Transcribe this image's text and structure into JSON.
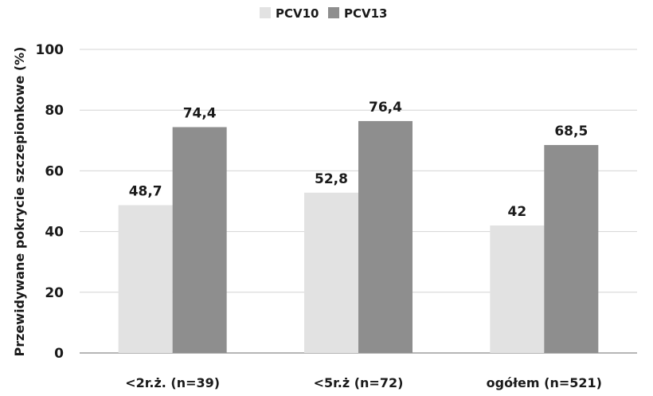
{
  "chart_data": {
    "type": "bar",
    "title": "",
    "xlabel": "",
    "ylabel": "Przewidywane pokrycie szczepionkowe (%)",
    "ylim": [
      0,
      100
    ],
    "yticks": [
      0,
      20,
      40,
      60,
      80,
      100
    ],
    "grid": true,
    "legend_position": "top-center",
    "categories": [
      "<2r.ż. (n=39)",
      "<5r.ż (n=72)",
      "ogółem (n=521)"
    ],
    "series": [
      {
        "name": "PCV10",
        "values": [
          48.7,
          52.8,
          42
        ],
        "labels": [
          "48,7",
          "52,8",
          "42"
        ],
        "color": "#e2e2e2"
      },
      {
        "name": "PCV13",
        "values": [
          74.4,
          76.4,
          68.5
        ],
        "labels": [
          "74,4",
          "76,4",
          "68,5"
        ],
        "color": "#8e8e8e"
      }
    ]
  }
}
